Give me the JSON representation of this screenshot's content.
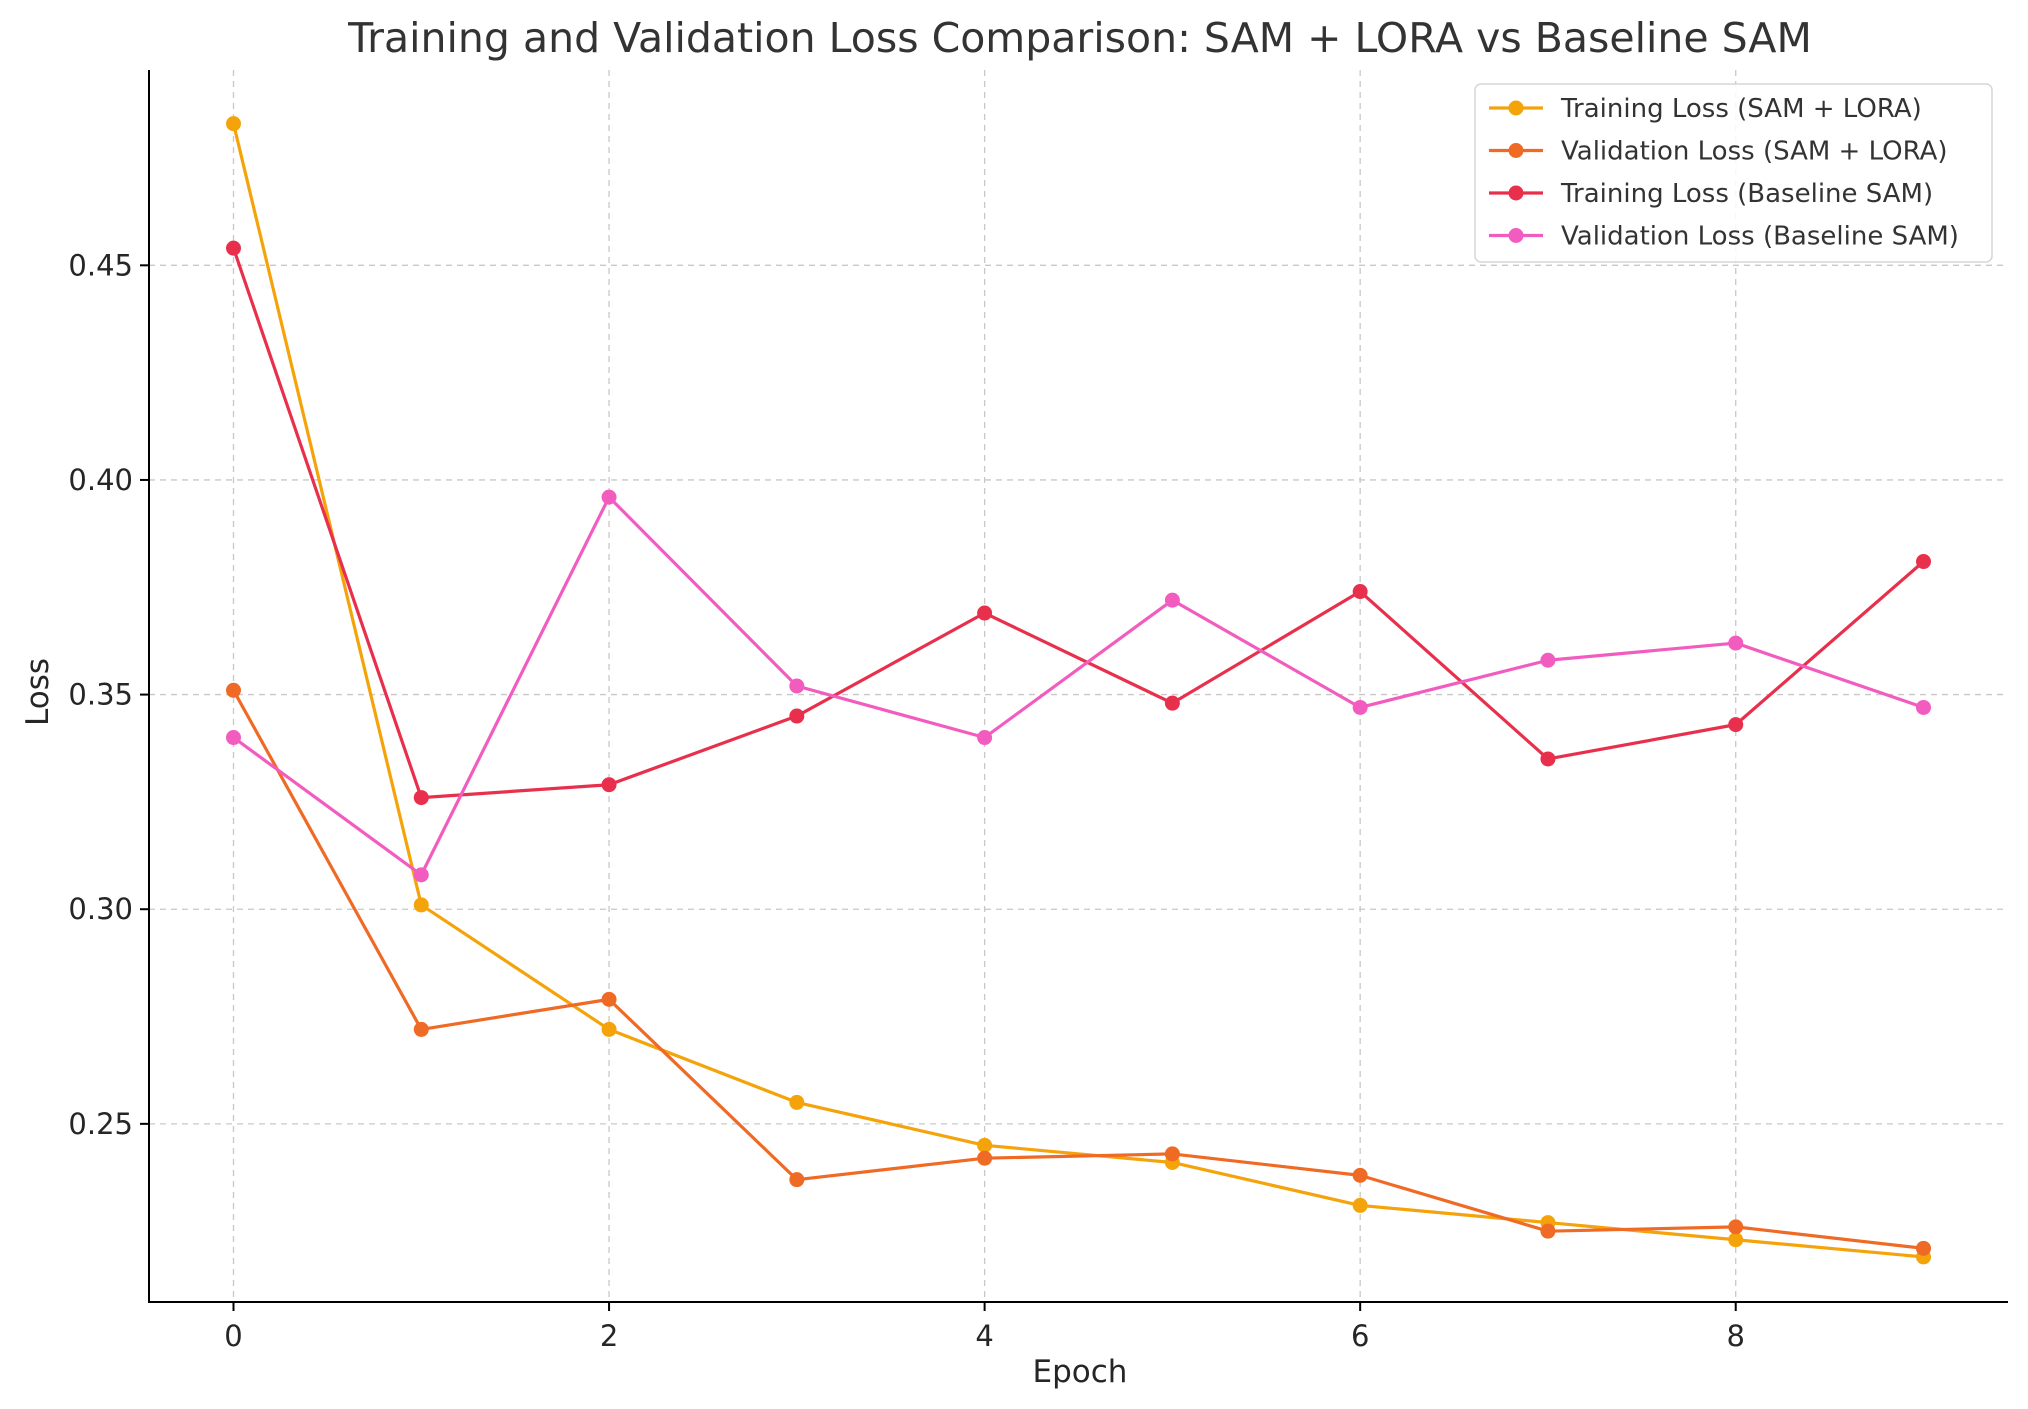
{
  "chart_data": {
    "type": "line",
    "title": "Training and Validation Loss Comparison: SAM + LORA vs Baseline SAM",
    "xlabel": "Epoch",
    "ylabel": "Loss",
    "x": [
      0,
      1,
      2,
      3,
      4,
      5,
      6,
      7,
      8,
      9
    ],
    "xlim": [
      -0.45,
      9.45
    ],
    "ylim": [
      0.2085,
      0.4955
    ],
    "xticks": [
      0,
      2,
      4,
      6,
      8
    ],
    "yticks": [
      0.25,
      0.3,
      0.35,
      0.4,
      0.45
    ],
    "xtick_labels": [
      "0",
      "2",
      "4",
      "6",
      "8"
    ],
    "ytick_labels": [
      "0.25",
      "0.30",
      "0.35",
      "0.40",
      "0.45"
    ],
    "grid": true,
    "legend_position": "top-right",
    "series": [
      {
        "name": "Training Loss (SAM + LORA)",
        "color": "#f5a30a",
        "values": [
          0.483,
          0.301,
          0.272,
          0.255,
          0.245,
          0.241,
          0.231,
          0.227,
          0.223,
          0.219
        ]
      },
      {
        "name": "Validation Loss (SAM + LORA)",
        "color": "#ef6a25",
        "values": [
          0.351,
          0.272,
          0.279,
          0.237,
          0.242,
          0.243,
          0.238,
          0.225,
          0.226,
          0.221
        ]
      },
      {
        "name": "Training Loss (Baseline SAM)",
        "color": "#e8304d",
        "values": [
          0.454,
          0.326,
          0.329,
          0.345,
          0.369,
          0.348,
          0.374,
          0.335,
          0.343,
          0.381
        ]
      },
      {
        "name": "Validation Loss (Baseline SAM)",
        "color": "#f25cbf",
        "values": [
          0.34,
          0.308,
          0.396,
          0.352,
          0.34,
          0.372,
          0.347,
          0.358,
          0.362,
          0.347
        ]
      }
    ]
  }
}
